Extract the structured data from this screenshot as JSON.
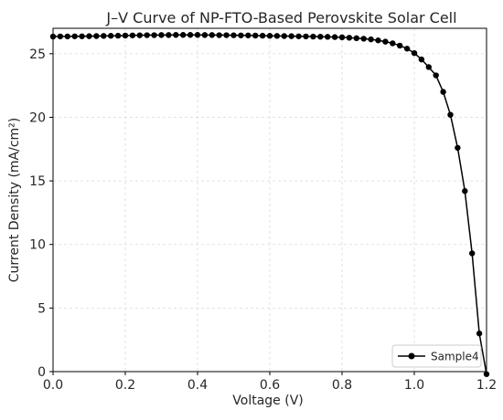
{
  "chart_data": {
    "type": "line",
    "title": "J–V Curve of NP-FTO-Based Perovskite Solar Cell",
    "xlabel": "Voltage (V)",
    "ylabel": "Current Density (mA/cm²)",
    "xlim": [
      0,
      1.2
    ],
    "ylim": [
      0,
      27
    ],
    "xticks": [
      "0.0",
      "0.2",
      "0.4",
      "0.6",
      "0.8",
      "1.0",
      "1.2"
    ],
    "yticks": [
      "0",
      "5",
      "10",
      "15",
      "20",
      "25"
    ],
    "grid": true,
    "legend_position": "bottom-right",
    "series": [
      {
        "name": "Sample4",
        "color": "#000000",
        "marker": "circle",
        "x": [
          0.0,
          0.02,
          0.04,
          0.06,
          0.08,
          0.1,
          0.12,
          0.14,
          0.16,
          0.18,
          0.2,
          0.22,
          0.24,
          0.26,
          0.28,
          0.3,
          0.32,
          0.34,
          0.36,
          0.38,
          0.4,
          0.42,
          0.44,
          0.46,
          0.48,
          0.5,
          0.52,
          0.54,
          0.56,
          0.58,
          0.6,
          0.62,
          0.64,
          0.66,
          0.68,
          0.7,
          0.72,
          0.74,
          0.76,
          0.78,
          0.8,
          0.82,
          0.84,
          0.86,
          0.88,
          0.9,
          0.92,
          0.94,
          0.96,
          0.98,
          1.0,
          1.02,
          1.04,
          1.06,
          1.08,
          1.1,
          1.12,
          1.14,
          1.16,
          1.18,
          1.2
        ],
        "y": [
          26.35,
          26.36,
          26.36,
          26.37,
          26.37,
          26.38,
          26.39,
          26.4,
          26.41,
          26.42,
          26.43,
          26.44,
          26.45,
          26.46,
          26.46,
          26.47,
          26.47,
          26.48,
          26.48,
          26.48,
          26.48,
          26.47,
          26.47,
          26.46,
          26.46,
          26.45,
          26.44,
          26.44,
          26.43,
          26.42,
          26.41,
          26.4,
          26.39,
          26.38,
          26.37,
          26.36,
          26.35,
          26.34,
          26.33,
          26.31,
          26.29,
          26.26,
          26.22,
          26.18,
          26.13,
          26.05,
          25.95,
          25.82,
          25.64,
          25.4,
          25.05,
          24.55,
          23.95,
          23.3,
          22.0,
          20.2,
          17.6,
          14.2,
          9.3,
          3.0,
          -0.2
        ]
      }
    ]
  }
}
